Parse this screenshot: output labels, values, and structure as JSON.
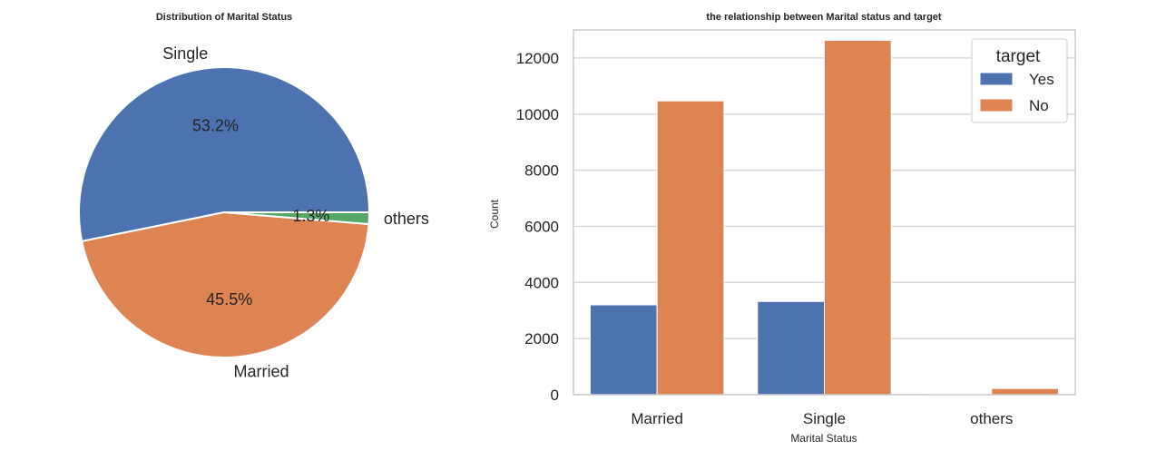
{
  "chart_data": [
    {
      "type": "pie",
      "title": "Distribution of Marital Status",
      "labels": [
        "Single",
        "Married",
        "others"
      ],
      "values": [
        53.2,
        45.5,
        1.3
      ],
      "pct_labels": [
        "53.2%",
        "45.5%",
        "1.3%"
      ],
      "colors": [
        "#4c72b0",
        "#dd8452",
        "#55a868"
      ]
    },
    {
      "type": "bar",
      "title": "the relationship between Marital status and target",
      "xlabel": "Marital Status",
      "ylabel": "Count",
      "categories": [
        "Married",
        "Single",
        "others"
      ],
      "ylim": [
        0,
        13000
      ],
      "yticks": [
        0,
        2000,
        4000,
        6000,
        8000,
        10000,
        12000
      ],
      "grid": true,
      "legend_title": "target",
      "legend_position": "top-right",
      "series": [
        {
          "name": "Yes",
          "color": "#4c72b0",
          "values": [
            3200,
            3320,
            20
          ]
        },
        {
          "name": "No",
          "color": "#dd8452",
          "values": [
            10470,
            12630,
            220
          ]
        }
      ]
    }
  ]
}
